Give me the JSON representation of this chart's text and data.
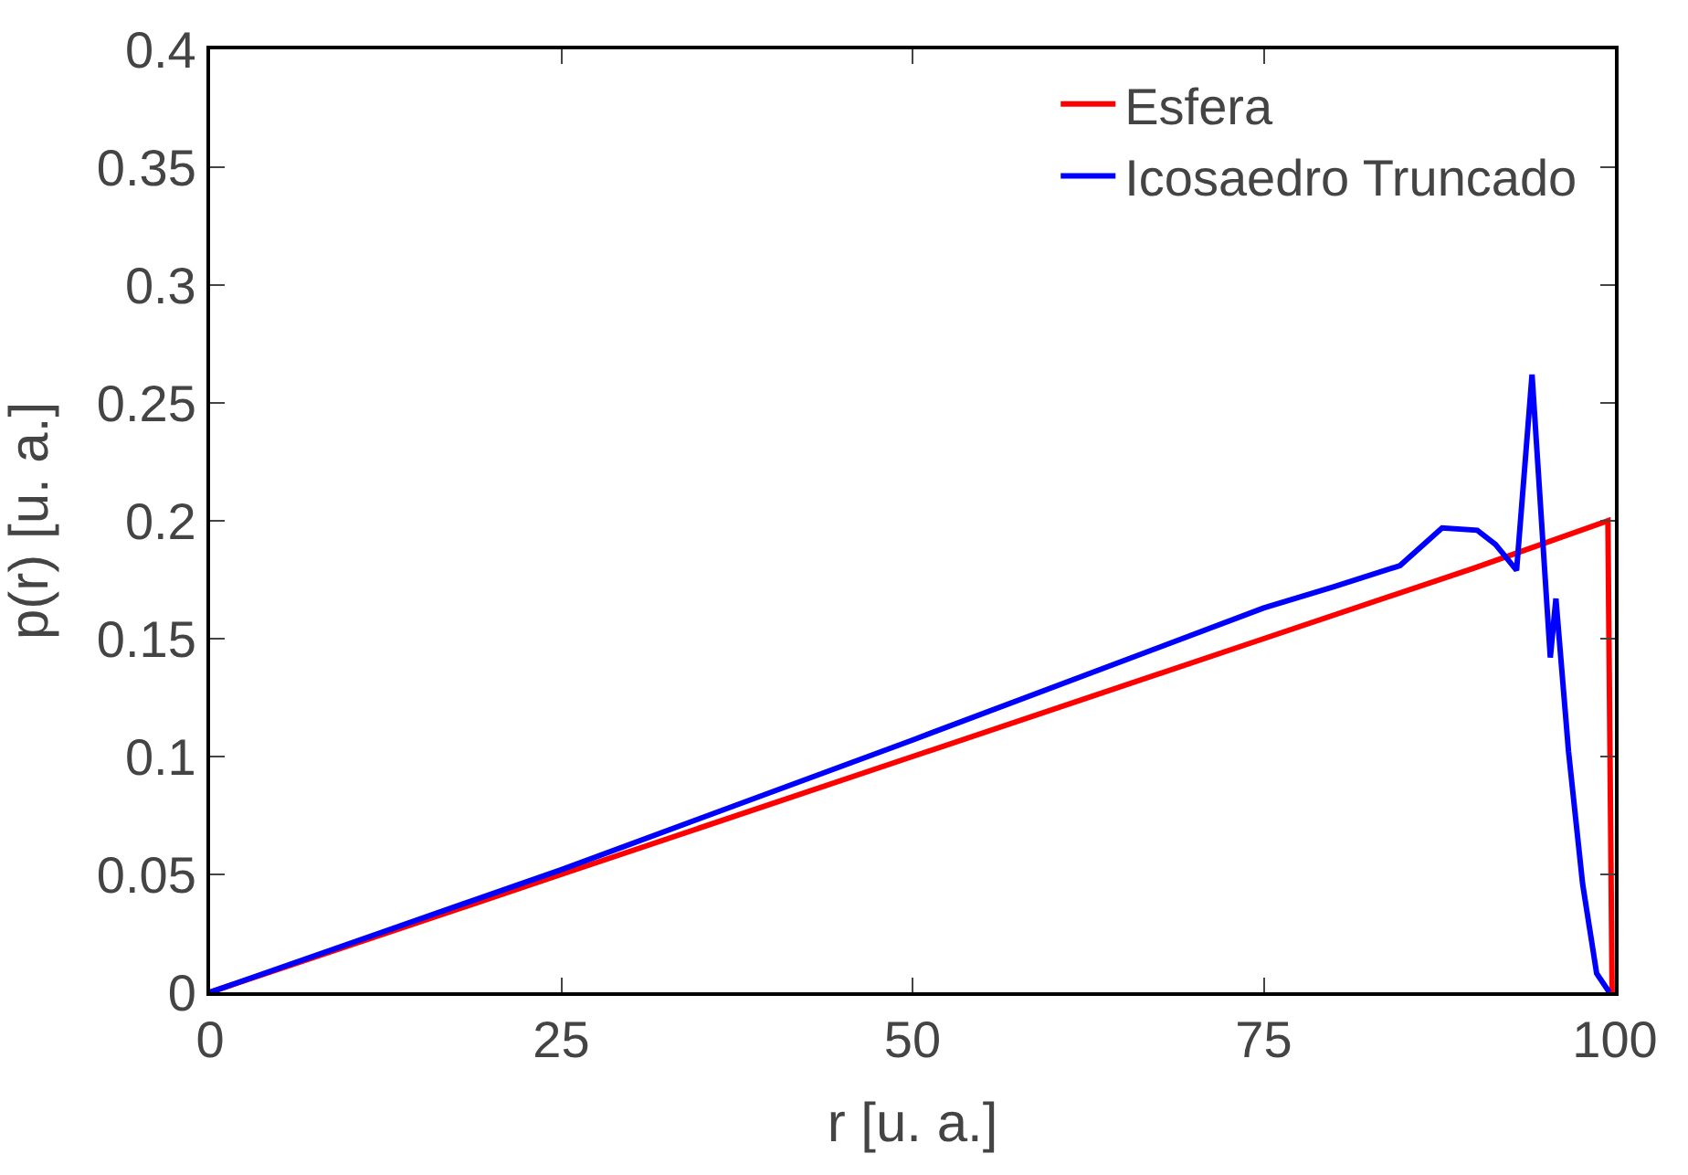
{
  "chart_data": {
    "type": "line",
    "xlabel": "r [u. a.]",
    "ylabel": "p(r) [u. a.]",
    "xlim": [
      0,
      100
    ],
    "xticks": [
      0,
      25,
      50,
      75,
      100
    ],
    "ylim": [
      0,
      0.4
    ],
    "yticks": [
      0,
      0.05,
      0.1,
      0.15,
      0.2,
      0.25,
      0.3,
      0.35,
      0.4
    ],
    "grid": false,
    "legend": "top right",
    "marker": "none",
    "line_style": "solid",
    "series": [
      {
        "name": "Esfera",
        "color": "#ff0000",
        "x": [
          0,
          25,
          50,
          75,
          90,
          99.5,
          99.8
        ],
        "values": [
          0,
          0.05,
          0.1,
          0.15,
          0.18,
          0.2,
          0
        ]
      },
      {
        "name": "Icosaedro Truncado",
        "color": "#0000ff",
        "x": [
          0,
          25,
          50,
          75,
          80,
          84.7,
          87.7,
          90.2,
          91.5,
          93.0,
          94.1,
          95.4,
          95.8,
          96.7,
          97.7,
          98.7,
          99.6
        ],
        "values": [
          0,
          0.052,
          0.107,
          0.163,
          0.172,
          0.181,
          0.197,
          0.196,
          0.19,
          0.179,
          0.262,
          0.142,
          0.167,
          0.102,
          0.046,
          0.008,
          0
        ]
      }
    ]
  }
}
